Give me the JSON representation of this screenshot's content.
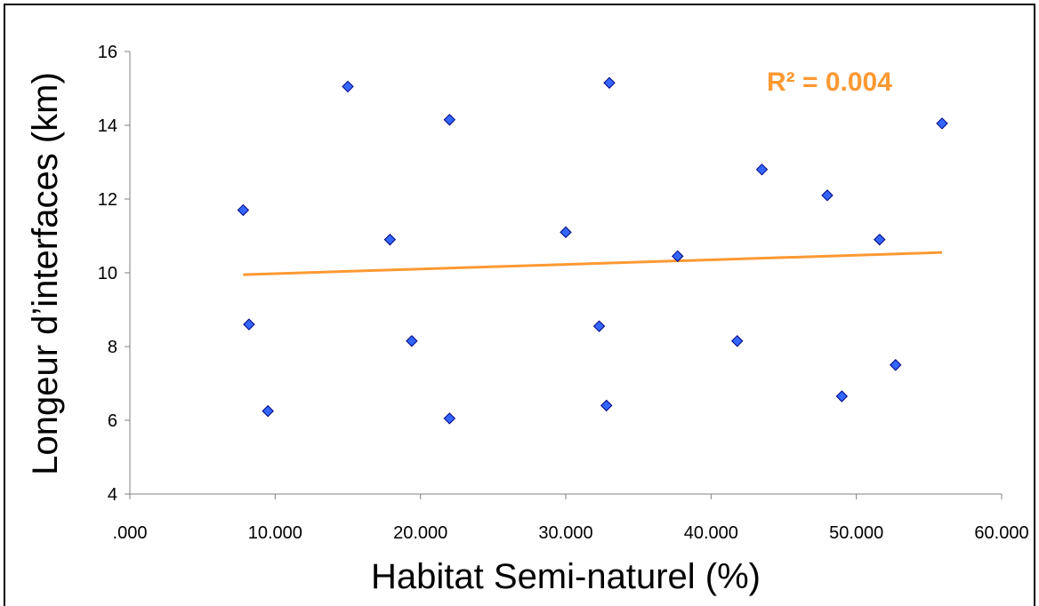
{
  "chart_data": {
    "type": "scatter",
    "title": "",
    "xlabel": "Habitat Semi-naturel (%)",
    "ylabel": "Longeur d’interfaces (km)",
    "xlim": [
      0,
      60
    ],
    "ylim": [
      4,
      16
    ],
    "x_tick_values": [
      0,
      10,
      20,
      30,
      40,
      50,
      60
    ],
    "x_tick_labels": [
      ".000",
      "10.000",
      "20.000",
      "30.000",
      "40.000",
      "50.000",
      "60.000"
    ],
    "y_tick_values": [
      4,
      6,
      8,
      10,
      12,
      14,
      16
    ],
    "y_tick_labels": [
      "4",
      "6",
      "8",
      "10",
      "12",
      "14",
      "16"
    ],
    "grid": false,
    "legend": "none",
    "points": [
      {
        "x": 7.8,
        "y": 11.7
      },
      {
        "x": 8.2,
        "y": 8.6
      },
      {
        "x": 9.5,
        "y": 6.25
      },
      {
        "x": 15.0,
        "y": 15.05
      },
      {
        "x": 17.9,
        "y": 10.9
      },
      {
        "x": 19.4,
        "y": 8.15
      },
      {
        "x": 22.0,
        "y": 14.15
      },
      {
        "x": 22.0,
        "y": 6.05
      },
      {
        "x": 30.0,
        "y": 11.1
      },
      {
        "x": 32.3,
        "y": 8.55
      },
      {
        "x": 32.8,
        "y": 6.4
      },
      {
        "x": 33.0,
        "y": 15.15
      },
      {
        "x": 37.7,
        "y": 10.45
      },
      {
        "x": 41.8,
        "y": 8.15
      },
      {
        "x": 43.5,
        "y": 12.8
      },
      {
        "x": 48.0,
        "y": 12.1
      },
      {
        "x": 49.0,
        "y": 6.65
      },
      {
        "x": 51.6,
        "y": 10.9
      },
      {
        "x": 52.7,
        "y": 7.5
      },
      {
        "x": 55.9,
        "y": 14.05
      }
    ],
    "trendline": {
      "x": [
        7.8,
        55.9
      ],
      "y": [
        9.95,
        10.55
      ]
    },
    "annotation": "R² = 0.004",
    "colors": {
      "marker_fill": "#3366ff",
      "marker_stroke": "#000080",
      "trendline": "#ff9933",
      "annotation": "#ff9933"
    }
  }
}
